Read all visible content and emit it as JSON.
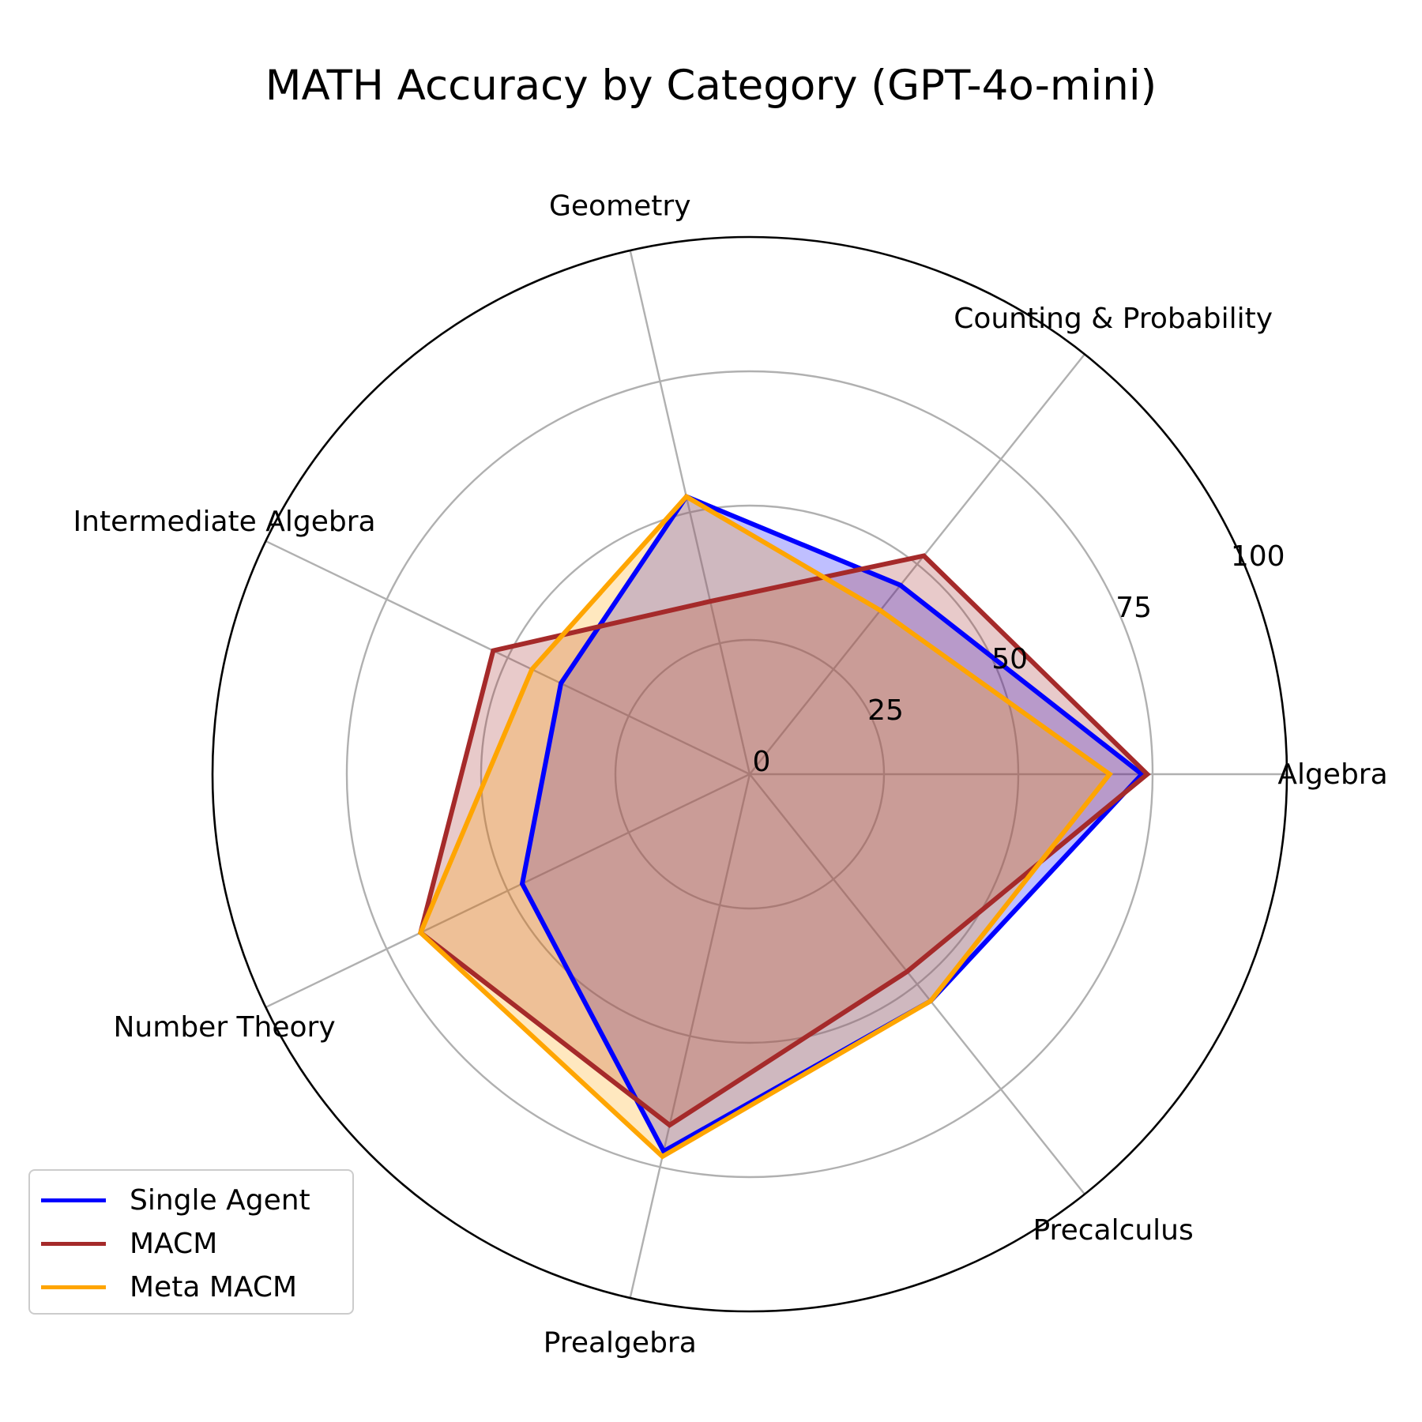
{
  "chart_data": {
    "type": "radar",
    "title": "MATH Accuracy by Category (GPT-4o-mini)",
    "categories": [
      "Algebra",
      "Counting & Probability",
      "Geometry",
      "Intermediate Algebra",
      "Number Theory",
      "Prealgebra",
      "Precalculus"
    ],
    "radial_ticks": [
      "0",
      "25",
      "50",
      "75",
      "100"
    ],
    "rlim": [
      0,
      100
    ],
    "grid": true,
    "legend_position": "lower-left",
    "series": [
      {
        "name": "Single Agent",
        "color": "#0000ff",
        "values": [
          73,
          45,
          53,
          39,
          47,
          72,
          54
        ]
      },
      {
        "name": "MACM",
        "color": "#a52a2a",
        "values": [
          74,
          52,
          33,
          53,
          68,
          67,
          47
        ]
      },
      {
        "name": "Meta MACM",
        "color": "#ffa500",
        "values": [
          67,
          39,
          53,
          45,
          68,
          73,
          54
        ]
      }
    ]
  }
}
